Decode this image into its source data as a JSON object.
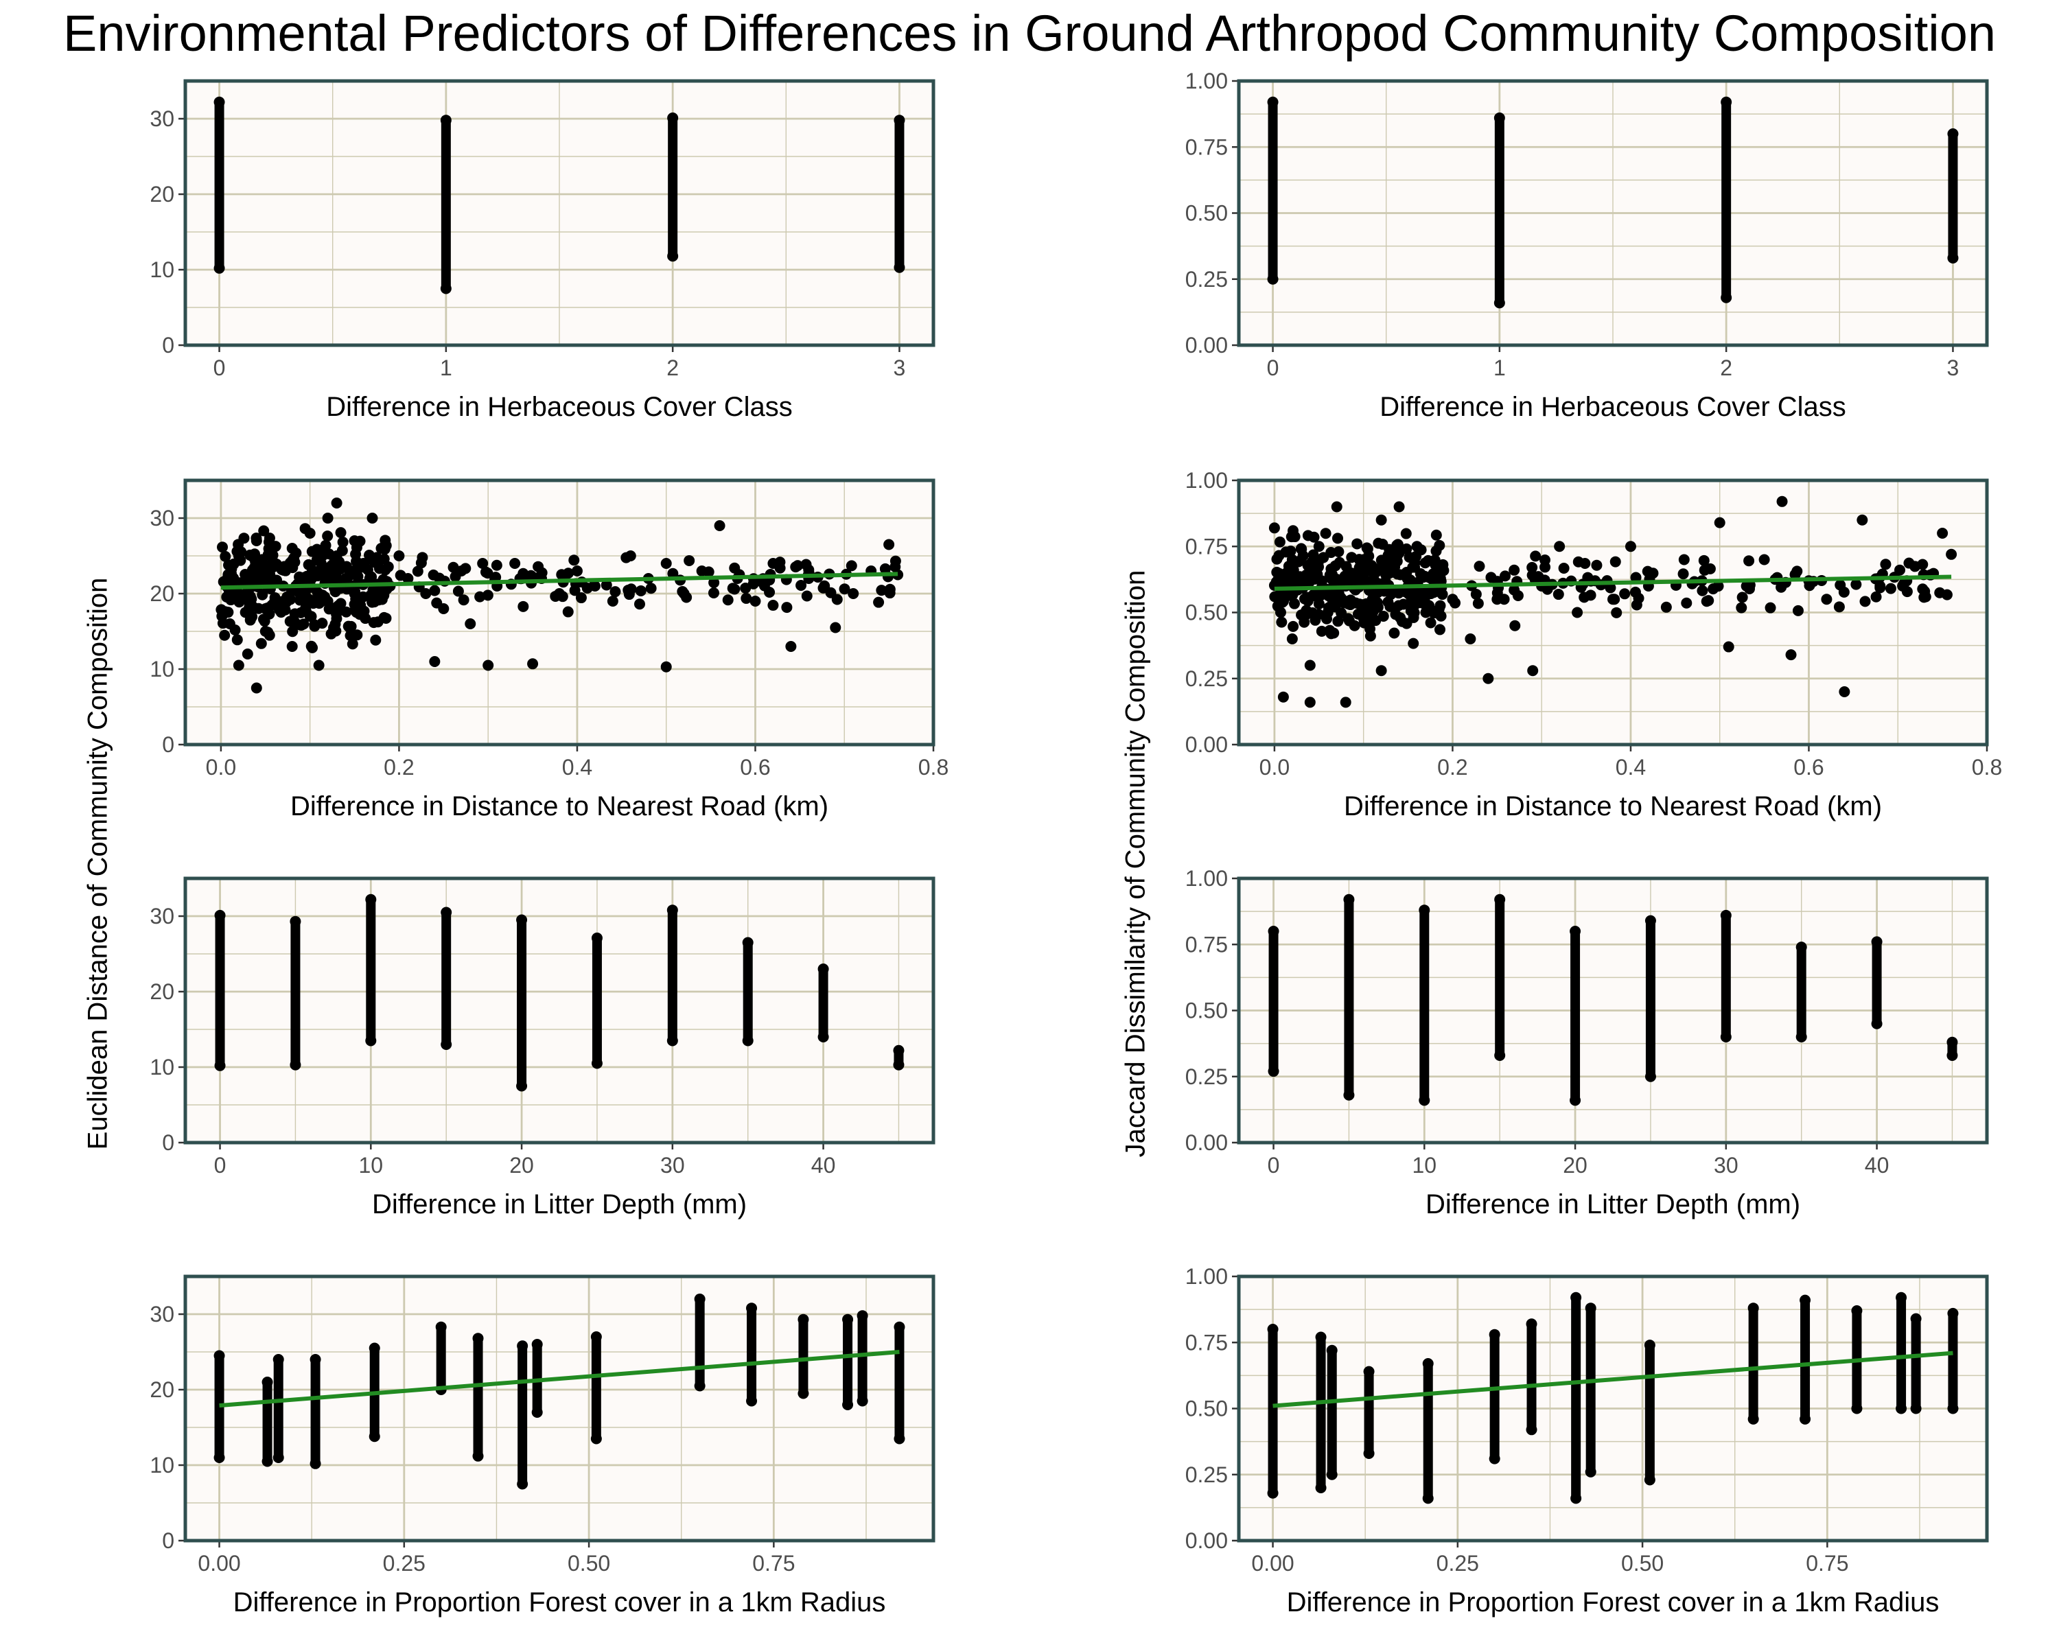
{
  "figure_title": "Environmental Predictors of Differences in Ground Arthropod Community Composition",
  "colors": {
    "panel_bg": "#fdfaf8",
    "grid": "#cdc9b0",
    "border": "#2f4f4f",
    "point": "#000000",
    "trend": "#228b22"
  },
  "y_labels": {
    "left": "Euclidean Distance of Community Composition",
    "right": "Jaccard Dissimilarity of Community Composition"
  },
  "chart_data": [
    {
      "type": "scatter",
      "id": "herb-euc",
      "xlabel": "Difference in Herbaceous Cover Class",
      "xlim": [
        -0.15,
        3.15
      ],
      "ylim": [
        0,
        35
      ],
      "xticks": [
        0,
        1,
        2,
        3
      ],
      "xtick_labels": [
        "0",
        "1",
        "2",
        "3"
      ],
      "yticks": [
        0,
        10,
        20,
        30
      ],
      "ytick_labels": [
        "0",
        "10",
        "20",
        "30"
      ],
      "strips": [
        [
          0,
          10.2,
          32.2
        ],
        [
          1,
          7.5,
          29.8
        ],
        [
          2,
          11.8,
          30.1
        ],
        [
          3,
          10.3,
          29.8
        ]
      ]
    },
    {
      "type": "scatter",
      "id": "herb-jac",
      "xlabel": "Difference in Herbaceous Cover Class",
      "xlim": [
        -0.15,
        3.15
      ],
      "ylim": [
        0,
        1
      ],
      "xticks": [
        0,
        1,
        2,
        3
      ],
      "xtick_labels": [
        "0",
        "1",
        "2",
        "3"
      ],
      "yticks": [
        0,
        0.25,
        0.5,
        0.75,
        1
      ],
      "ytick_labels": [
        "0.00",
        "0.25",
        "0.50",
        "0.75",
        "1.00"
      ],
      "strips": [
        [
          0,
          0.25,
          0.92
        ],
        [
          1,
          0.16,
          0.86
        ],
        [
          2,
          0.18,
          0.92
        ],
        [
          3,
          0.33,
          0.8
        ]
      ]
    },
    {
      "type": "scatter",
      "id": "road-euc",
      "xlabel": "Difference in Distance to Nearest Road (km)",
      "xlim": [
        -0.04,
        0.8
      ],
      "ylim": [
        0,
        35
      ],
      "xticks": [
        0,
        0.2,
        0.4,
        0.6,
        0.8
      ],
      "xtick_labels": [
        "0.0",
        "0.2",
        "0.4",
        "0.6",
        "0.8"
      ],
      "yticks": [
        0,
        10,
        20,
        30
      ],
      "ytick_labels": [
        "0",
        "10",
        "20",
        "30"
      ],
      "points": [
        [
          0.01,
          16
        ],
        [
          0.02,
          25
        ],
        [
          0.02,
          20
        ],
        [
          0.03,
          12
        ],
        [
          0.04,
          22
        ],
        [
          0.04,
          27
        ],
        [
          0.05,
          18
        ],
        [
          0.05,
          15
        ],
        [
          0.06,
          24
        ],
        [
          0.07,
          21
        ],
        [
          0.08,
          13
        ],
        [
          0.08,
          26
        ],
        [
          0.09,
          20
        ],
        [
          0.1,
          28
        ],
        [
          0.1,
          17
        ],
        [
          0.11,
          23
        ],
        [
          0.12,
          30
        ],
        [
          0.12,
          19
        ],
        [
          0.13,
          32
        ],
        [
          0.13,
          25
        ],
        [
          0.14,
          22
        ],
        [
          0.15,
          27
        ],
        [
          0.15,
          20
        ],
        [
          0.16,
          24
        ],
        [
          0.17,
          30
        ],
        [
          0.18,
          26
        ],
        [
          0.19,
          21
        ],
        [
          0.2,
          25
        ],
        [
          0.21,
          22
        ],
        [
          0.23,
          20
        ],
        [
          0.24,
          11
        ],
        [
          0.25,
          18
        ],
        [
          0.27,
          23
        ],
        [
          0.28,
          16
        ],
        [
          0.3,
          10.5
        ],
        [
          0.31,
          21
        ],
        [
          0.33,
          24
        ],
        [
          0.35,
          10.7
        ],
        [
          0.36,
          22
        ],
        [
          0.38,
          20
        ],
        [
          0.4,
          23
        ],
        [
          0.42,
          21
        ],
        [
          0.44,
          19
        ],
        [
          0.46,
          25
        ],
        [
          0.48,
          22
        ],
        [
          0.5,
          10.3
        ],
        [
          0.5,
          24
        ],
        [
          0.52,
          20
        ],
        [
          0.54,
          23
        ],
        [
          0.56,
          29
        ],
        [
          0.58,
          22
        ],
        [
          0.6,
          19
        ],
        [
          0.62,
          24
        ],
        [
          0.64,
          13
        ],
        [
          0.66,
          22
        ],
        [
          0.69,
          15.5
        ],
        [
          0.71,
          20
        ],
        [
          0.73,
          23
        ],
        [
          0.75,
          26.5
        ],
        [
          0.76,
          22.5
        ],
        [
          0.02,
          10.5
        ],
        [
          0.04,
          7.5
        ],
        [
          0.11,
          10.5
        ]
      ],
      "trend": [
        [
          0.0,
          20.8
        ],
        [
          0.76,
          22.6
        ]
      ]
    },
    {
      "type": "scatter",
      "id": "road-jac",
      "xlabel": "Difference in Distance to Nearest Road (km)",
      "xlim": [
        -0.04,
        0.8
      ],
      "ylim": [
        0,
        1
      ],
      "xticks": [
        0,
        0.2,
        0.4,
        0.6,
        0.8
      ],
      "xtick_labels": [
        "0.0",
        "0.2",
        "0.4",
        "0.6",
        "0.8"
      ],
      "yticks": [
        0,
        0.25,
        0.5,
        0.75,
        1
      ],
      "ytick_labels": [
        "0.00",
        "0.25",
        "0.50",
        "0.75",
        "1.00"
      ],
      "points": [
        [
          0.0,
          0.82
        ],
        [
          0.01,
          0.55
        ],
        [
          0.02,
          0.7
        ],
        [
          0.02,
          0.4
        ],
        [
          0.03,
          0.62
        ],
        [
          0.04,
          0.3
        ],
        [
          0.05,
          0.75
        ],
        [
          0.06,
          0.5
        ],
        [
          0.07,
          0.9
        ],
        [
          0.08,
          0.6
        ],
        [
          0.09,
          0.45
        ],
        [
          0.1,
          0.7
        ],
        [
          0.11,
          0.55
        ],
        [
          0.12,
          0.85
        ],
        [
          0.13,
          0.65
        ],
        [
          0.14,
          0.9
        ],
        [
          0.15,
          0.6
        ],
        [
          0.16,
          0.75
        ],
        [
          0.17,
          0.5
        ],
        [
          0.18,
          0.62
        ],
        [
          0.2,
          0.55
        ],
        [
          0.22,
          0.4
        ],
        [
          0.24,
          0.25
        ],
        [
          0.25,
          0.55
        ],
        [
          0.27,
          0.45
        ],
        [
          0.29,
          0.28
        ],
        [
          0.3,
          0.6
        ],
        [
          0.32,
          0.75
        ],
        [
          0.34,
          0.5
        ],
        [
          0.36,
          0.62
        ],
        [
          0.38,
          0.55
        ],
        [
          0.4,
          0.75
        ],
        [
          0.42,
          0.6
        ],
        [
          0.44,
          0.52
        ],
        [
          0.46,
          0.7
        ],
        [
          0.48,
          0.62
        ],
        [
          0.5,
          0.84
        ],
        [
          0.51,
          0.37
        ],
        [
          0.53,
          0.6
        ],
        [
          0.55,
          0.7
        ],
        [
          0.57,
          0.92
        ],
        [
          0.58,
          0.34
        ],
        [
          0.6,
          0.62
        ],
        [
          0.62,
          0.55
        ],
        [
          0.64,
          0.2
        ],
        [
          0.66,
          0.85
        ],
        [
          0.68,
          0.6
        ],
        [
          0.71,
          0.62
        ],
        [
          0.73,
          0.58
        ],
        [
          0.75,
          0.8
        ],
        [
          0.76,
          0.72
        ],
        [
          0.01,
          0.18
        ],
        [
          0.04,
          0.16
        ],
        [
          0.08,
          0.16
        ],
        [
          0.12,
          0.28
        ]
      ],
      "trend": [
        [
          0.0,
          0.59
        ],
        [
          0.76,
          0.635
        ]
      ]
    },
    {
      "type": "scatter",
      "id": "litter-euc",
      "xlabel": "Difference in Litter Depth (mm)",
      "xlim": [
        -2.3,
        47.3
      ],
      "ylim": [
        0,
        35
      ],
      "xticks": [
        0,
        10,
        20,
        30,
        40
      ],
      "xtick_labels": [
        "0",
        "10",
        "20",
        "30",
        "40"
      ],
      "yticks": [
        0,
        10,
        20,
        30
      ],
      "ytick_labels": [
        "0",
        "10",
        "20",
        "30"
      ],
      "strips": [
        [
          0,
          10.2,
          30.1
        ],
        [
          5,
          10.3,
          29.3
        ],
        [
          10,
          13.5,
          32.2
        ],
        [
          15,
          13.0,
          30.5
        ],
        [
          20,
          7.5,
          29.5
        ],
        [
          25,
          10.5,
          27.1
        ],
        [
          30,
          13.5,
          30.8
        ],
        [
          35,
          13.5,
          26.5
        ],
        [
          40,
          14.0,
          23.0
        ],
        [
          45,
          10.3,
          12.2
        ]
      ]
    },
    {
      "type": "scatter",
      "id": "litter-jac",
      "xlabel": "Difference in Litter Depth (mm)",
      "xlim": [
        -2.3,
        47.3
      ],
      "ylim": [
        0,
        1
      ],
      "xticks": [
        0,
        10,
        20,
        30,
        40
      ],
      "xtick_labels": [
        "0",
        "10",
        "20",
        "30",
        "40"
      ],
      "yticks": [
        0,
        0.25,
        0.5,
        0.75,
        1
      ],
      "ytick_labels": [
        "0.00",
        "0.25",
        "0.50",
        "0.75",
        "1.00"
      ],
      "strips": [
        [
          0,
          0.27,
          0.8
        ],
        [
          5,
          0.18,
          0.92
        ],
        [
          10,
          0.16,
          0.88
        ],
        [
          15,
          0.33,
          0.92
        ],
        [
          20,
          0.16,
          0.8
        ],
        [
          25,
          0.25,
          0.84
        ],
        [
          30,
          0.4,
          0.86
        ],
        [
          35,
          0.4,
          0.74
        ],
        [
          40,
          0.45,
          0.76
        ],
        [
          45,
          0.33,
          0.38
        ]
      ]
    },
    {
      "type": "scatter",
      "id": "forest-euc",
      "xlabel": "Difference in Proportion Forest cover in a 1km Radius",
      "xlim": [
        -0.046,
        0.966
      ],
      "ylim": [
        0,
        35
      ],
      "xticks": [
        0,
        0.25,
        0.5,
        0.75
      ],
      "xtick_labels": [
        "0.00",
        "0.25",
        "0.50",
        "0.75"
      ],
      "yticks": [
        0,
        10,
        20,
        30
      ],
      "ytick_labels": [
        "0",
        "10",
        "20",
        "30"
      ],
      "strips": [
        [
          0.0,
          11.0,
          24.5
        ],
        [
          0.065,
          10.5,
          21.0
        ],
        [
          0.08,
          11.0,
          24.0
        ],
        [
          0.13,
          10.2,
          24.0
        ],
        [
          0.21,
          13.8,
          25.5
        ],
        [
          0.3,
          20.0,
          28.3
        ],
        [
          0.35,
          11.2,
          26.8
        ],
        [
          0.41,
          7.5,
          25.8
        ],
        [
          0.43,
          17.0,
          26.0
        ],
        [
          0.51,
          13.5,
          27.0
        ],
        [
          0.65,
          20.5,
          32.0
        ],
        [
          0.72,
          18.5,
          30.8
        ],
        [
          0.79,
          19.5,
          29.3
        ],
        [
          0.85,
          18.0,
          29.3
        ],
        [
          0.87,
          18.5,
          29.8
        ],
        [
          0.92,
          13.5,
          28.3
        ]
      ],
      "trend": [
        [
          0.0,
          17.9
        ],
        [
          0.92,
          25.0
        ]
      ]
    },
    {
      "type": "scatter",
      "id": "forest-jac",
      "xlabel": "Difference in Proportion Forest cover in a 1km Radius",
      "xlim": [
        -0.046,
        0.966
      ],
      "ylim": [
        0,
        1
      ],
      "xticks": [
        0,
        0.25,
        0.5,
        0.75
      ],
      "xtick_labels": [
        "0.00",
        "0.25",
        "0.50",
        "0.75"
      ],
      "yticks": [
        0,
        0.25,
        0.5,
        0.75,
        1
      ],
      "ytick_labels": [
        "0.00",
        "0.25",
        "0.50",
        "0.75",
        "1.00"
      ],
      "strips": [
        [
          0.0,
          0.18,
          0.8
        ],
        [
          0.065,
          0.2,
          0.77
        ],
        [
          0.08,
          0.25,
          0.72
        ],
        [
          0.13,
          0.33,
          0.64
        ],
        [
          0.21,
          0.16,
          0.67
        ],
        [
          0.3,
          0.31,
          0.78
        ],
        [
          0.35,
          0.42,
          0.82
        ],
        [
          0.41,
          0.16,
          0.92
        ],
        [
          0.43,
          0.26,
          0.88
        ],
        [
          0.51,
          0.23,
          0.74
        ],
        [
          0.65,
          0.46,
          0.88
        ],
        [
          0.72,
          0.46,
          0.91
        ],
        [
          0.79,
          0.5,
          0.87
        ],
        [
          0.85,
          0.5,
          0.92
        ],
        [
          0.87,
          0.5,
          0.84
        ],
        [
          0.92,
          0.5,
          0.86
        ]
      ],
      "trend": [
        [
          0.0,
          0.51
        ],
        [
          0.92,
          0.71
        ]
      ]
    }
  ]
}
